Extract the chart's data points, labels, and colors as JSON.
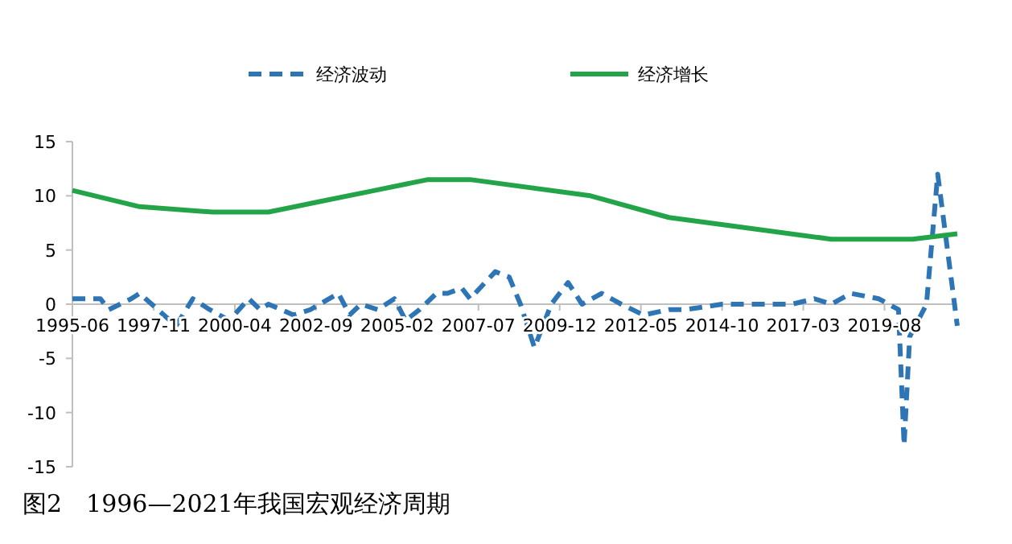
{
  "chart_data": {
    "type": "line",
    "x": [
      "1995-06",
      "1995-11",
      "1996-04",
      "1996-07",
      "1997-03",
      "1997-06",
      "1998-07",
      "1999-01",
      "1999-07",
      "2000-02",
      "2000-09",
      "2001-01",
      "2001-04",
      "2002-01",
      "2002-07",
      "2003-05",
      "2003-09",
      "2004-01",
      "2004-07",
      "2005-01",
      "2005-05",
      "2005-10",
      "2006-04",
      "2006-08",
      "2007-01",
      "2007-04",
      "2008-01",
      "2008-06",
      "2008-10",
      "2009-03",
      "2009-09",
      "2010-03",
      "2010-08",
      "2011-03",
      "2011-10",
      "2012-06",
      "2013-03",
      "2013-09",
      "2014-10",
      "2016-11",
      "2017-07",
      "2018-01",
      "2018-08",
      "2019-06",
      "2020-01",
      "2020-03",
      "2020-05",
      "2020-11",
      "2021-03",
      "2021-10"
    ],
    "series": [
      {
        "name": "经济波动",
        "color": "#2e75b6",
        "line_style": "dashed",
        "values": [
          0.5,
          0.5,
          0.5,
          -0.5,
          0.5,
          1,
          -2,
          0.5,
          -0.5,
          -1.5,
          0.5,
          -0.5,
          0,
          -1,
          -0.5,
          1,
          -1,
          0,
          -0.5,
          0.5,
          -1.5,
          -0.5,
          1,
          1,
          1.5,
          0.5,
          3,
          2.5,
          0,
          -4,
          0,
          2,
          0,
          1,
          0,
          -1,
          -0.5,
          -0.5,
          0,
          0,
          0.5,
          0,
          1,
          0.5,
          -0.5,
          -13,
          -3,
          0,
          12,
          -2
        ]
      },
      {
        "name": "经济增长",
        "color": "#23a448",
        "line_style": "solid",
        "x": [
          "1995-06",
          "1997-06",
          "1999-08",
          "2001-04",
          "2002-11",
          "2004-06",
          "2006-01",
          "2007-04",
          "2010-11",
          "2013-03",
          "2015-08",
          "2018-01",
          "2019-04",
          "2020-06",
          "2021-10"
        ],
        "values": [
          10.5,
          9,
          8.5,
          8.5,
          9.5,
          10.5,
          11.5,
          11.5,
          10,
          8,
          7,
          6,
          6,
          6,
          6.5
        ]
      }
    ],
    "xlim": [
      "1995-06",
      "2021-10"
    ],
    "xticks": [
      "1995-06",
      "1997-11",
      "2000-04",
      "2002-09",
      "2005-02",
      "2007-07",
      "2009-12",
      "2012-05",
      "2014-10",
      "2017-03",
      "2019-08"
    ],
    "ylim": [
      -15,
      15
    ],
    "yticks": [
      -15,
      -10,
      -5,
      0,
      5,
      10,
      15
    ],
    "legend": "top",
    "annotations": [
      "图2　1996—2021年我国宏观经济周期"
    ]
  }
}
